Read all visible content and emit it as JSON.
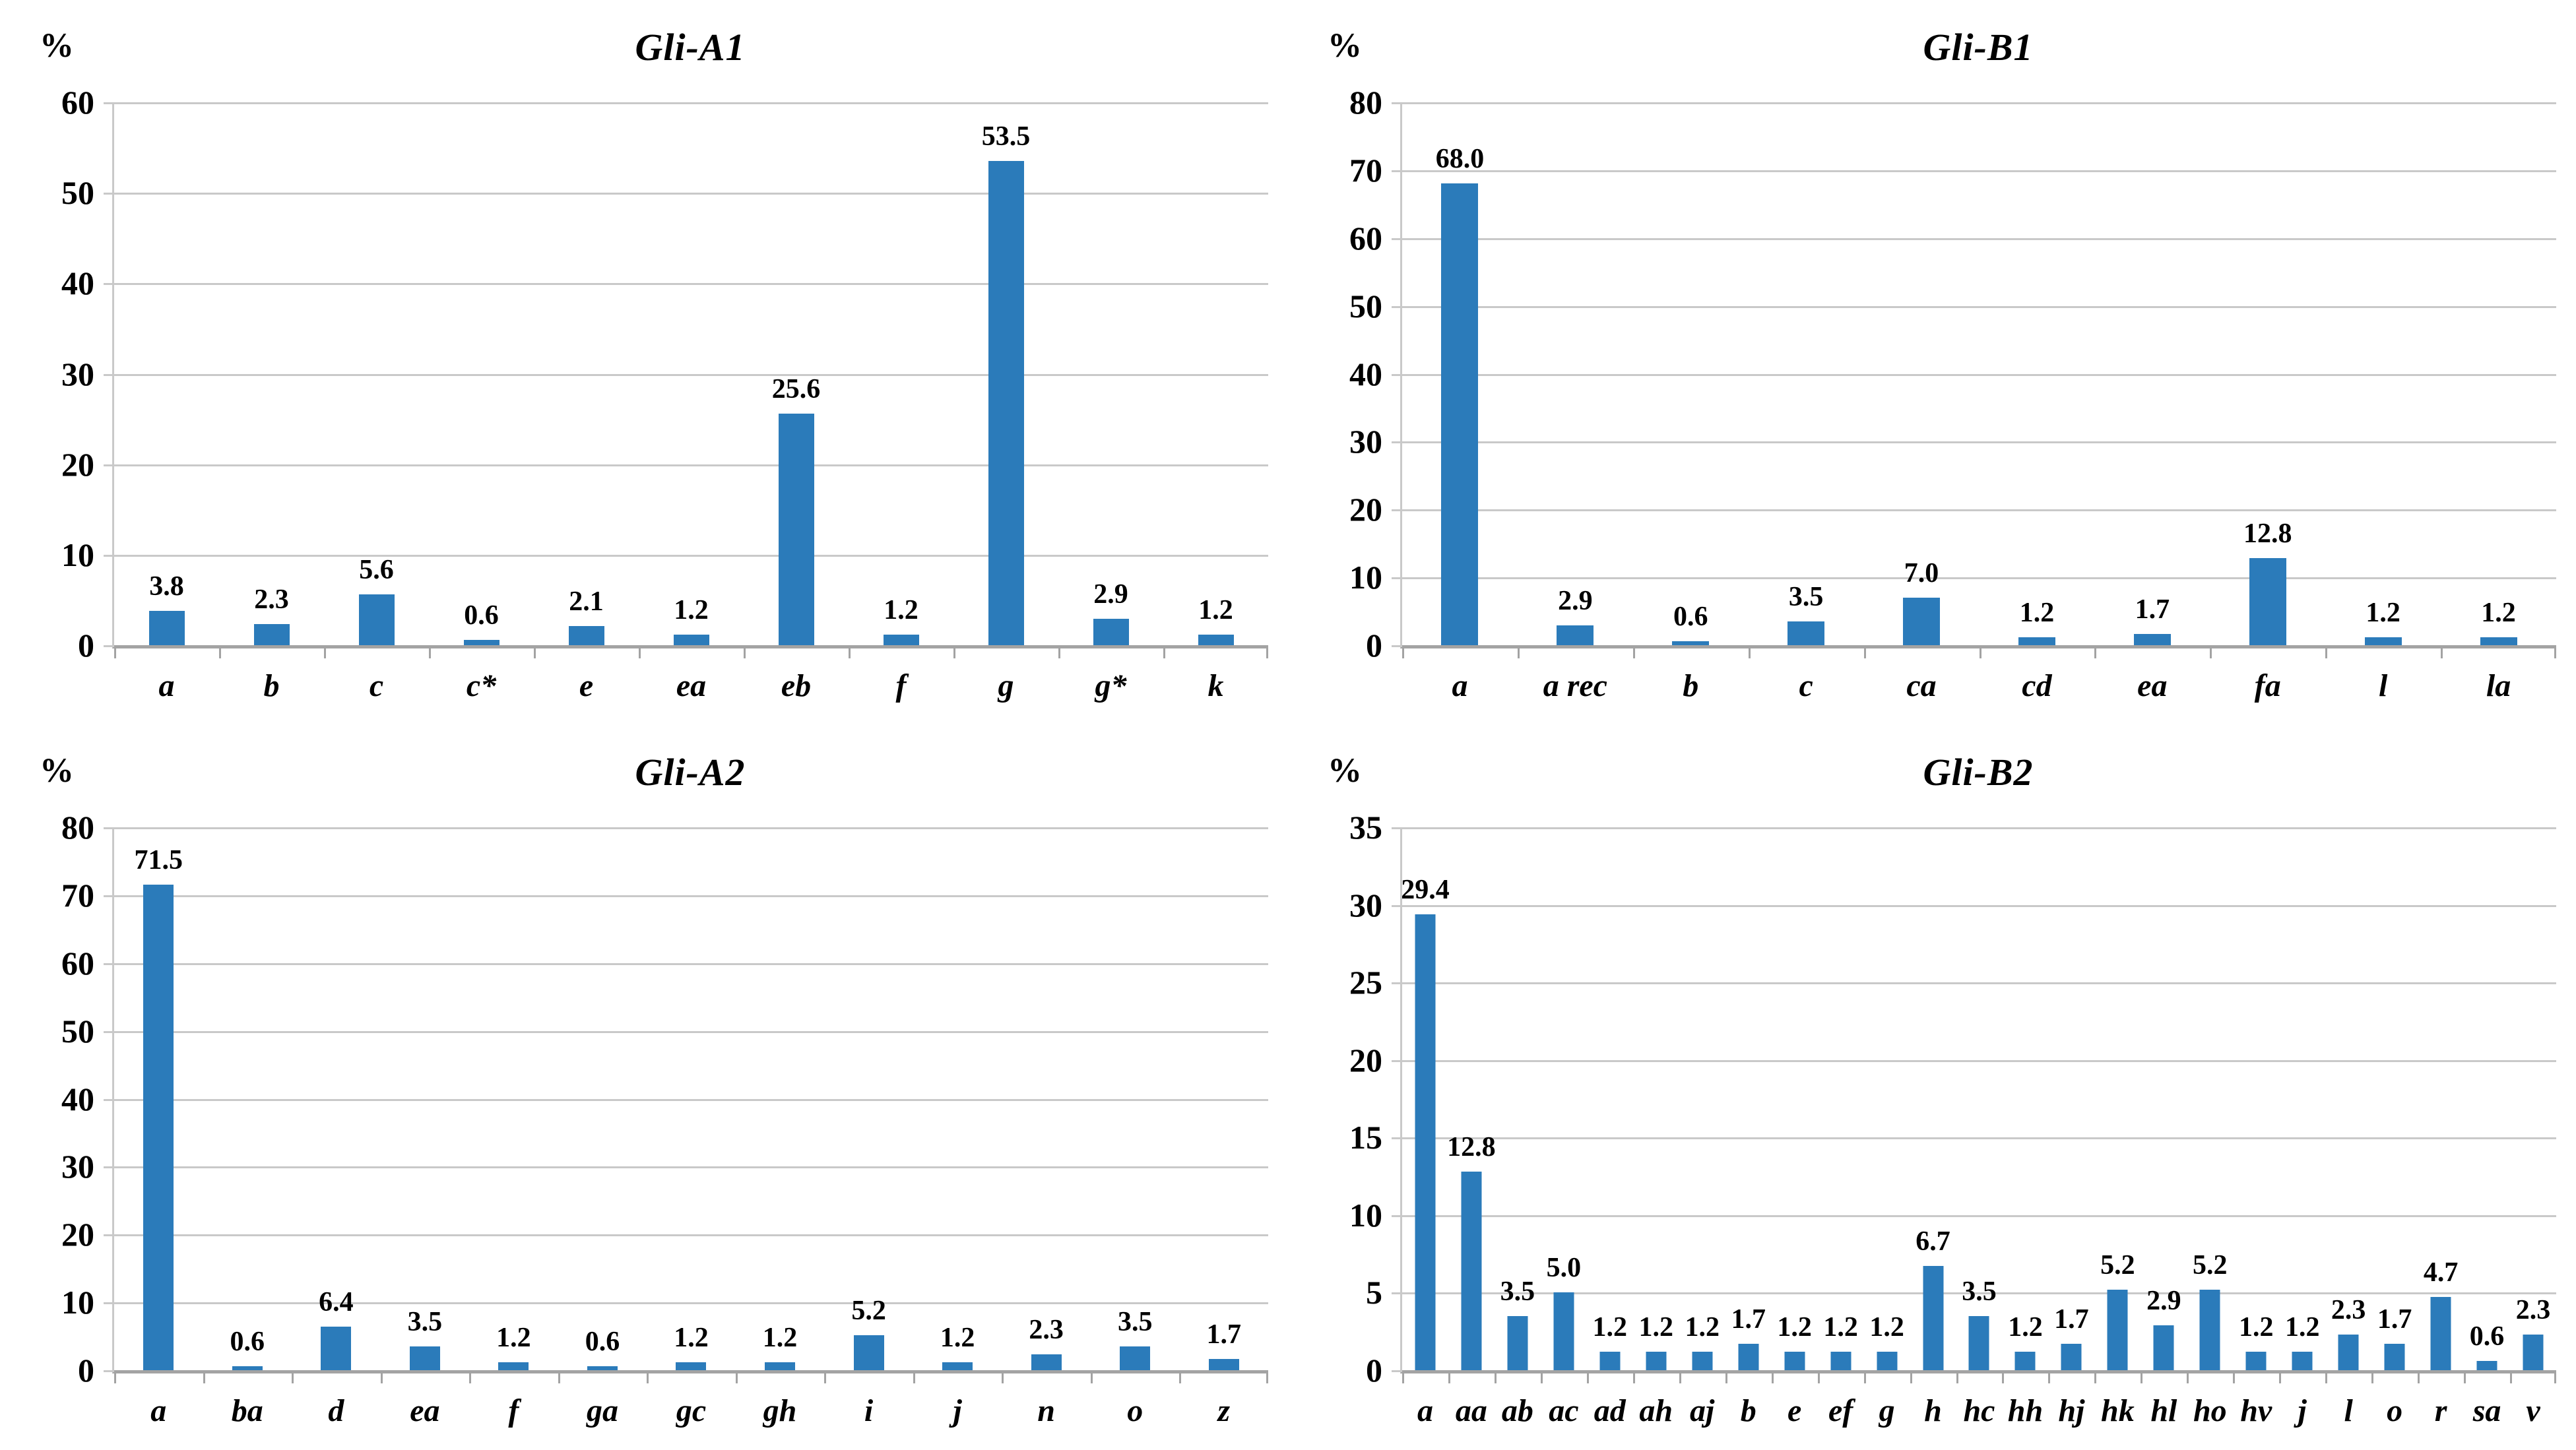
{
  "figure": {
    "description": "Four bar charts of allele frequencies (%) at gliadin loci",
    "bar_color": "#2b7bba",
    "gridline_color": "#c9c9c9",
    "axis_color": "#a3a3a3"
  },
  "chart_data": [
    {
      "type": "bar",
      "title": "Gli-A1",
      "ylabel": "%",
      "categories": [
        "a",
        "b",
        "c",
        "c*",
        "e",
        "ea",
        "eb",
        "f",
        "g",
        "g*",
        "k"
      ],
      "values": [
        3.8,
        2.3,
        5.6,
        0.6,
        2.1,
        1.2,
        25.6,
        1.2,
        53.5,
        2.9,
        1.2
      ],
      "ylim": [
        0,
        60
      ],
      "ytick_step": 10,
      "grid": true,
      "legend": null,
      "bar_color": "#2b7bba"
    },
    {
      "type": "bar",
      "title": "Gli-B1",
      "ylabel": "%",
      "categories": [
        "a",
        "a rec",
        "b",
        "c",
        "ca",
        "cd",
        "ea",
        "fa",
        "l",
        "la"
      ],
      "values": [
        68.0,
        2.9,
        0.6,
        3.5,
        7.0,
        1.2,
        1.7,
        12.8,
        1.2,
        1.2
      ],
      "ylim": [
        0,
        80
      ],
      "ytick_step": 10,
      "grid": true,
      "legend": null,
      "bar_color": "#2b7bba"
    },
    {
      "type": "bar",
      "title": "Gli-A2",
      "ylabel": "%",
      "categories": [
        "a",
        "ba",
        "d",
        "ea",
        "f",
        "ga",
        "gc",
        "gh",
        "i",
        "j",
        "n",
        "o",
        "z"
      ],
      "values": [
        71.5,
        0.6,
        6.4,
        3.5,
        1.2,
        0.6,
        1.2,
        1.2,
        5.2,
        1.2,
        2.3,
        3.5,
        1.7
      ],
      "ylim": [
        0,
        80
      ],
      "ytick_step": 10,
      "grid": true,
      "legend": null,
      "bar_color": "#2b7bba"
    },
    {
      "type": "bar",
      "title": "Gli-B2",
      "ylabel": "%",
      "categories": [
        "a",
        "aa",
        "ab",
        "ac",
        "ad",
        "ah",
        "aj",
        "b",
        "e",
        "ef",
        "g",
        "h",
        "hc",
        "hh",
        "hj",
        "hk",
        "hl",
        "ho",
        "hv",
        "j",
        "l",
        "o",
        "r",
        "sa",
        "v"
      ],
      "values": [
        29.4,
        12.8,
        3.5,
        5.0,
        1.2,
        1.2,
        1.2,
        1.7,
        1.2,
        1.2,
        1.2,
        6.7,
        3.5,
        1.2,
        1.7,
        5.2,
        2.9,
        5.2,
        1.2,
        1.2,
        2.3,
        1.7,
        4.7,
        0.6,
        2.3
      ],
      "ylim": [
        0,
        35
      ],
      "ytick_step": 5,
      "grid": true,
      "legend": null,
      "bar_color": "#2b7bba"
    }
  ]
}
